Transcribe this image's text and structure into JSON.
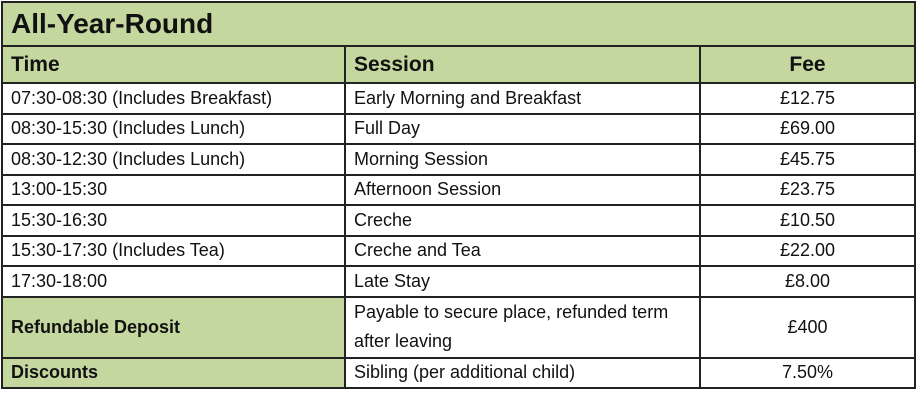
{
  "title": "All-Year-Round",
  "headers": {
    "time": "Time",
    "session": "Session",
    "fee": "Fee"
  },
  "rows": [
    {
      "time": "07:30-08:30 (Includes Breakfast)",
      "session": "Early Morning and Breakfast",
      "fee": "£12.75"
    },
    {
      "time": "08:30-15:30 (Includes Lunch)",
      "session": "Full Day",
      "fee": "£69.00"
    },
    {
      "time": "08:30-12:30 (Includes Lunch)",
      "session": "Morning Session",
      "fee": "£45.75"
    },
    {
      "time": "13:00-15:30",
      "session": "Afternoon Session",
      "fee": "£23.75"
    },
    {
      "time": "15:30-16:30",
      "session": "Creche",
      "fee": "£10.50"
    },
    {
      "time": "15:30-17:30 (Includes Tea)",
      "session": "Creche and Tea",
      "fee": "£22.00"
    },
    {
      "time": "17:30-18:00",
      "session": "Late Stay",
      "fee": "£8.00"
    }
  ],
  "deposit": {
    "label": "Refundable Deposit",
    "session": "Payable to secure place, refunded term after leaving",
    "fee": "£400"
  },
  "discounts": {
    "label": "Discounts",
    "session": "Sibling (per additional child)",
    "fee": "7.50%"
  },
  "colors": {
    "header_bg": "#c4d79f"
  }
}
